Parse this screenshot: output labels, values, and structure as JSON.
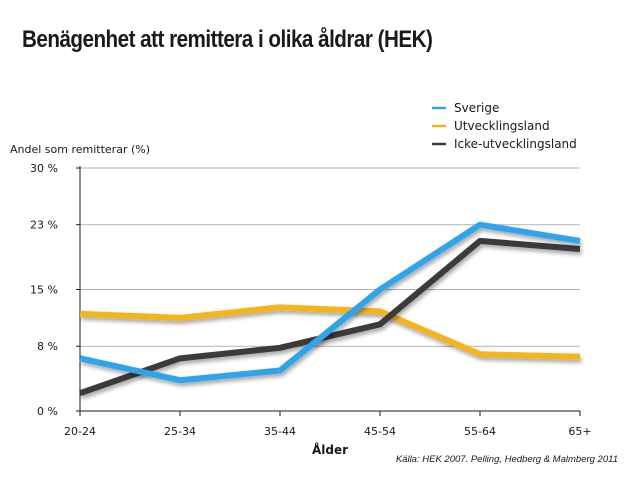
{
  "title": "Benägenhet att remittera i olika åldrar (HEK)",
  "source": "Källa: HEK 2007. Pelling, Hedberg & Malmberg 2011",
  "chart_data": {
    "type": "line",
    "title": "Benägenhet att remittera i olika åldrar (HEK)",
    "ylabel": "Andel som remitterar (%)",
    "xlabel": "Ålder",
    "categories": [
      "20-24",
      "25-34",
      "35-44",
      "45-54",
      "55-64",
      "65+"
    ],
    "ylim": [
      0,
      30
    ],
    "yticks": [
      0,
      8,
      15,
      23,
      30
    ],
    "yticklabels": [
      "0 %",
      "8 %",
      "15 %",
      "23 %",
      "30 %"
    ],
    "grid": true,
    "legend_position": "top-right",
    "series": [
      {
        "name": "Sverige",
        "color": "#2ea4ec",
        "values": [
          6.5,
          3.8,
          5.0,
          15.0,
          23.0,
          21.0
        ]
      },
      {
        "name": "Utvecklingsland",
        "color": "#f6b41c",
        "values": [
          12.0,
          11.5,
          12.8,
          12.3,
          7.0,
          6.7
        ]
      },
      {
        "name": "Icke-utvecklingsland",
        "color": "#3a3a3a",
        "values": [
          2.2,
          6.5,
          7.8,
          10.7,
          21.0,
          20.0
        ]
      }
    ]
  }
}
